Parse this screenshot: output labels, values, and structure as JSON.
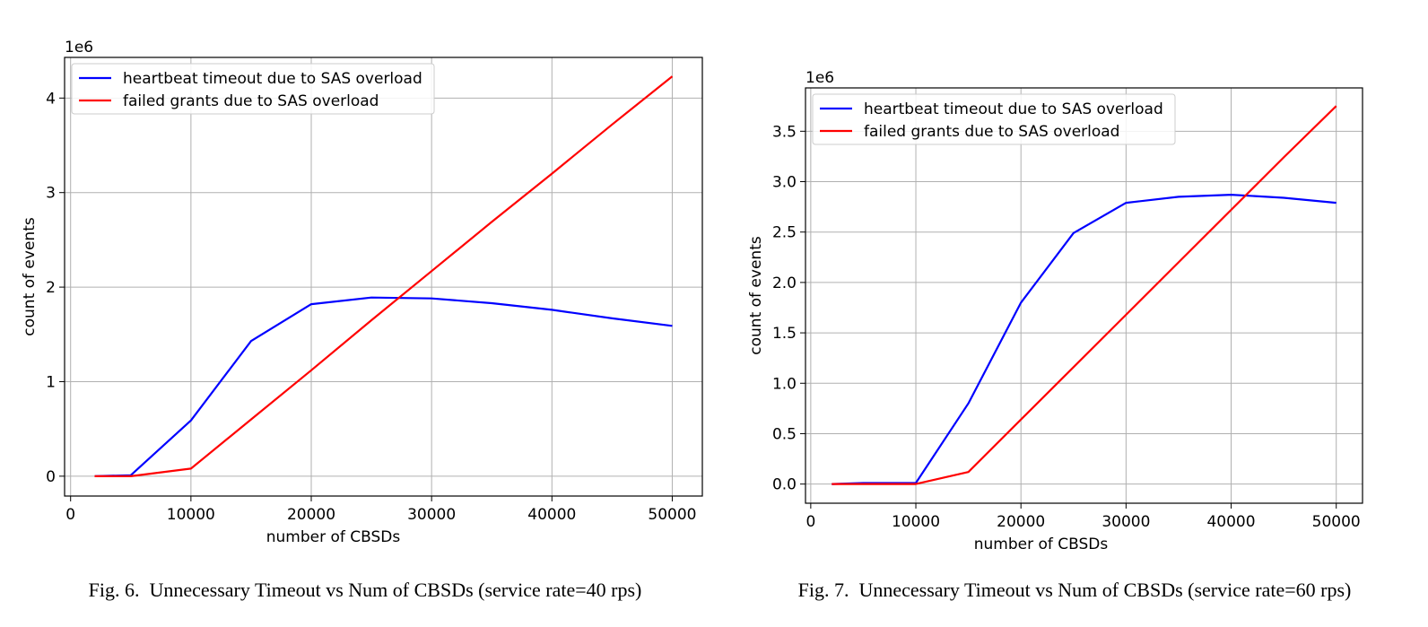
{
  "chart_data": [
    {
      "type": "line",
      "caption": "Fig. 6.  Unnecessary Timeout vs Num of CBSDs (service rate=40 rps)",
      "xlabel": "number of CBSDs",
      "ylabel": "count of events",
      "y_offset_label": "1e6",
      "xlim": [
        -500,
        52500
      ],
      "ylim": [
        -0.21,
        4.43
      ],
      "x_ticks": [
        0,
        10000,
        20000,
        30000,
        40000,
        50000
      ],
      "x_tick_labels": [
        "0",
        "10000",
        "20000",
        "30000",
        "40000",
        "50000"
      ],
      "y_ticks": [
        0,
        1,
        2,
        3,
        4
      ],
      "y_tick_labels": [
        "0",
        "1",
        "2",
        "3",
        "4"
      ],
      "grid": true,
      "legend_position": "top-left",
      "series": [
        {
          "name": "heartbeat timeout due to SAS overload",
          "color": "#0000ff",
          "x": [
            2000,
            5000,
            10000,
            15000,
            20000,
            25000,
            30000,
            35000,
            40000,
            45000,
            50000
          ],
          "y": [
            0,
            0.01,
            0.59,
            1.43,
            1.82,
            1.89,
            1.88,
            1.83,
            1.76,
            1.67,
            1.59
          ]
        },
        {
          "name": "failed grants due to SAS overload",
          "color": "#ff0000",
          "x": [
            2000,
            5000,
            10000,
            15000,
            20000,
            25000,
            30000,
            35000,
            40000,
            45000,
            50000
          ],
          "y": [
            0,
            0,
            0.08,
            0.6,
            1.12,
            1.65,
            2.17,
            2.69,
            3.2,
            3.72,
            4.23
          ]
        }
      ]
    },
    {
      "type": "line",
      "caption": "Fig. 7.  Unnecessary Timeout vs Num of CBSDs (service rate=60 rps)",
      "xlabel": "number of CBSDs",
      "ylabel": "count of events",
      "y_offset_label": "1e6",
      "xlim": [
        -500,
        52500
      ],
      "ylim": [
        -0.19,
        3.93
      ],
      "x_ticks": [
        0,
        10000,
        20000,
        30000,
        40000,
        50000
      ],
      "x_tick_labels": [
        "0",
        "10000",
        "20000",
        "30000",
        "40000",
        "50000"
      ],
      "y_ticks": [
        0,
        0.5,
        1,
        1.5,
        2,
        2.5,
        3,
        3.5
      ],
      "y_tick_labels": [
        "0.0",
        "0.5",
        "1.0",
        "1.5",
        "2.0",
        "2.5",
        "3.0",
        "3.5"
      ],
      "grid": true,
      "legend_position": "top-left",
      "series": [
        {
          "name": "heartbeat timeout due to SAS overload",
          "color": "#0000ff",
          "x": [
            2000,
            5000,
            10000,
            15000,
            20000,
            25000,
            30000,
            35000,
            40000,
            45000,
            50000
          ],
          "y": [
            0,
            0.01,
            0.01,
            0.8,
            1.8,
            2.49,
            2.79,
            2.85,
            2.87,
            2.84,
            2.79
          ]
        },
        {
          "name": "failed grants due to SAS overload",
          "color": "#ff0000",
          "x": [
            2000,
            5000,
            10000,
            15000,
            20000,
            25000,
            30000,
            35000,
            40000,
            45000,
            50000
          ],
          "y": [
            0,
            0,
            0,
            0.12,
            0.64,
            1.16,
            1.68,
            2.2,
            2.72,
            3.24,
            3.75
          ]
        }
      ]
    }
  ]
}
